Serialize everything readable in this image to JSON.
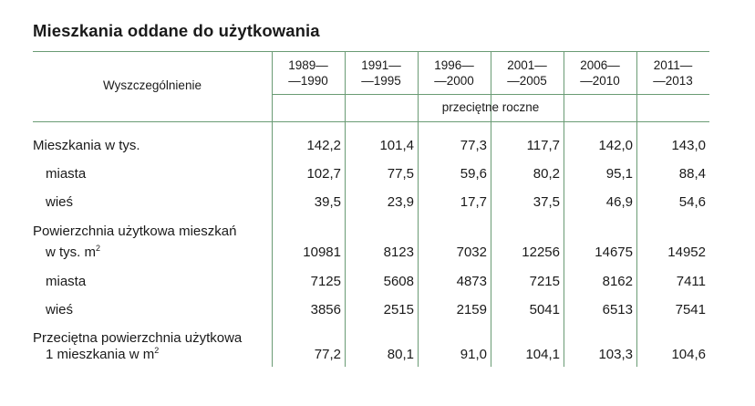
{
  "title": "Mieszkania oddane do użytkowania",
  "stub_header": "Wyszczególnienie",
  "columns": [
    {
      "line1": "1989—",
      "line2": "—1990"
    },
    {
      "line1": "1991—",
      "line2": "—1995"
    },
    {
      "line1": "1996—",
      "line2": "—2000"
    },
    {
      "line1": "2001—",
      "line2": "—2005"
    },
    {
      "line1": "2006—",
      "line2": "—2010"
    },
    {
      "line1": "2011—",
      "line2": "—2013"
    }
  ],
  "unit_note": "przeciętne roczne",
  "rows": [
    {
      "label": "Mieszkania w tys.",
      "values": [
        "142,2",
        "101,4",
        "77,3",
        "117,7",
        "142,0",
        "143,0"
      ]
    },
    {
      "label": "miasta",
      "values": [
        "102,7",
        "77,5",
        "59,6",
        "80,2",
        "95,1",
        "88,4"
      ]
    },
    {
      "label": "wieś",
      "values": [
        "39,5",
        "23,9",
        "17,7",
        "37,5",
        "46,9",
        "54,6"
      ]
    },
    {
      "label_line1": "Powierzchnia użytkowa mieszkań",
      "label_line2": "w tys. m",
      "label_sup": "2",
      "values": [
        "10981",
        "8123",
        "7032",
        "12256",
        "14675",
        "14952"
      ]
    },
    {
      "label": "miasta",
      "values": [
        "7125",
        "5608",
        "4873",
        "7215",
        "8162",
        "7411"
      ]
    },
    {
      "label": "wieś",
      "values": [
        "3856",
        "2515",
        "2159",
        "5041",
        "6513",
        "7541"
      ]
    },
    {
      "label_line1": "Przeciętna powierzchnia użytkowa",
      "label_line2": "1 mieszkania w m",
      "label_sup": "2",
      "values": [
        "77,2",
        "80,1",
        "91,0",
        "104,1",
        "103,3",
        "104,6"
      ]
    }
  ]
}
